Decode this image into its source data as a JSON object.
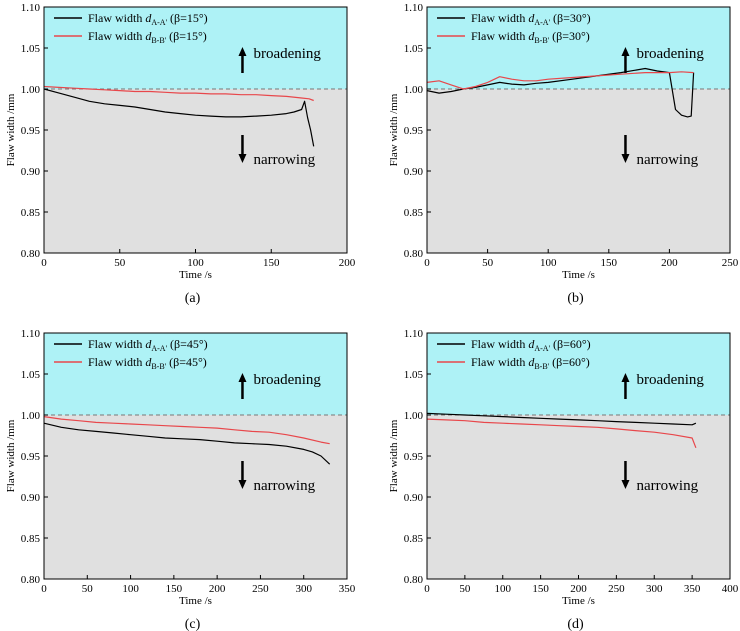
{
  "chart_data": [
    {
      "type": "line",
      "panel_label": "(a)",
      "xlabel": "Time /s",
      "ylabel": "Flaw width /mm",
      "xlim": [
        0,
        200
      ],
      "ylim": [
        0.8,
        1.1
      ],
      "xticks": [
        "0",
        "50",
        "100",
        "150",
        "200"
      ],
      "yticks": [
        "0.80",
        "0.85",
        "0.90",
        "0.95",
        "1.00",
        "1.05",
        "1.10"
      ],
      "reference_line": 1.0,
      "annotations": {
        "up": "broadening",
        "down": "narrowing"
      },
      "series": [
        {
          "name": "Flaw width",
          "sub": "A-A'",
          "angle": "(β=15°)",
          "color": "#000000",
          "x": [
            0,
            10,
            20,
            30,
            40,
            50,
            60,
            70,
            80,
            90,
            100,
            110,
            120,
            130,
            140,
            150,
            160,
            165,
            170,
            172,
            174,
            176,
            178
          ],
          "y": [
            1.0,
            0.995,
            0.99,
            0.985,
            0.982,
            0.98,
            0.978,
            0.975,
            0.972,
            0.97,
            0.968,
            0.967,
            0.966,
            0.966,
            0.967,
            0.968,
            0.97,
            0.972,
            0.975,
            0.985,
            0.965,
            0.95,
            0.93
          ]
        },
        {
          "name": "Flaw width",
          "sub": "B-B'",
          "angle": "(β=15°)",
          "color": "#e8474b",
          "x": [
            0,
            10,
            20,
            30,
            40,
            50,
            60,
            70,
            80,
            90,
            100,
            110,
            120,
            130,
            140,
            150,
            160,
            170,
            175,
            178
          ],
          "y": [
            1.003,
            1.002,
            1.001,
            1.0,
            0.999,
            0.998,
            0.997,
            0.997,
            0.996,
            0.995,
            0.995,
            0.994,
            0.994,
            0.993,
            0.993,
            0.992,
            0.991,
            0.989,
            0.988,
            0.986
          ]
        }
      ]
    },
    {
      "type": "line",
      "panel_label": "(b)",
      "xlabel": "Time /s",
      "ylabel": "Flaw width /mm",
      "xlim": [
        0,
        250
      ],
      "ylim": [
        0.8,
        1.1
      ],
      "xticks": [
        "0",
        "50",
        "100",
        "150",
        "200",
        "250"
      ],
      "yticks": [
        "0.80",
        "0.85",
        "0.90",
        "0.95",
        "1.00",
        "1.05",
        "1.10"
      ],
      "reference_line": 1.0,
      "annotations": {
        "up": "broadening",
        "down": "narrowing"
      },
      "series": [
        {
          "name": "Flaw width",
          "sub": "A-A'",
          "angle": "(β=30°)",
          "color": "#000000",
          "x": [
            0,
            10,
            20,
            30,
            40,
            50,
            60,
            70,
            80,
            90,
            100,
            120,
            140,
            160,
            180,
            190,
            200,
            205,
            210,
            215,
            218,
            220
          ],
          "y": [
            0.998,
            0.995,
            0.997,
            1.0,
            1.002,
            1.005,
            1.008,
            1.006,
            1.005,
            1.007,
            1.008,
            1.012,
            1.016,
            1.02,
            1.025,
            1.022,
            1.02,
            0.975,
            0.968,
            0.966,
            0.967,
            1.02
          ]
        },
        {
          "name": "Flaw width",
          "sub": "B-B'",
          "angle": "(β=30°)",
          "color": "#e8474b",
          "x": [
            0,
            10,
            20,
            30,
            40,
            50,
            60,
            70,
            80,
            90,
            100,
            120,
            140,
            160,
            180,
            200,
            210,
            220
          ],
          "y": [
            1.008,
            1.01,
            1.005,
            1.0,
            1.003,
            1.008,
            1.015,
            1.012,
            1.01,
            1.01,
            1.012,
            1.014,
            1.016,
            1.018,
            1.02,
            1.02,
            1.021,
            1.02
          ]
        }
      ]
    },
    {
      "type": "line",
      "panel_label": "(c)",
      "xlabel": "Time /s",
      "ylabel": "Flaw width /mm",
      "xlim": [
        0,
        350
      ],
      "ylim": [
        0.8,
        1.1
      ],
      "xticks": [
        "0",
        "50",
        "100",
        "150",
        "200",
        "250",
        "300",
        "350"
      ],
      "yticks": [
        "0.80",
        "0.85",
        "0.90",
        "0.95",
        "1.00",
        "1.05",
        "1.10"
      ],
      "reference_line": 1.0,
      "annotations": {
        "up": "broadening",
        "down": "narrowing"
      },
      "series": [
        {
          "name": "Flaw width",
          "sub": "A-A'",
          "angle": "(β=45°)",
          "color": "#000000",
          "x": [
            0,
            20,
            40,
            60,
            80,
            100,
            120,
            140,
            160,
            180,
            200,
            220,
            240,
            260,
            280,
            300,
            310,
            320,
            330
          ],
          "y": [
            0.99,
            0.985,
            0.982,
            0.98,
            0.978,
            0.976,
            0.974,
            0.972,
            0.971,
            0.97,
            0.968,
            0.966,
            0.965,
            0.964,
            0.962,
            0.958,
            0.955,
            0.95,
            0.94
          ]
        },
        {
          "name": "Flaw width",
          "sub": "B-B'",
          "angle": "(β=45°)",
          "color": "#e8474b",
          "x": [
            0,
            20,
            40,
            60,
            80,
            100,
            120,
            140,
            160,
            180,
            200,
            220,
            240,
            260,
            280,
            300,
            320,
            330
          ],
          "y": [
            0.998,
            0.995,
            0.993,
            0.991,
            0.99,
            0.989,
            0.988,
            0.987,
            0.986,
            0.985,
            0.984,
            0.982,
            0.98,
            0.979,
            0.976,
            0.972,
            0.967,
            0.965
          ]
        }
      ]
    },
    {
      "type": "line",
      "panel_label": "(d)",
      "xlabel": "Time /s",
      "ylabel": "Flaw width /mm",
      "xlim": [
        0,
        400
      ],
      "ylim": [
        0.8,
        1.1
      ],
      "xticks": [
        "0",
        "50",
        "100",
        "150",
        "200",
        "250",
        "300",
        "350",
        "400"
      ],
      "yticks": [
        "0.80",
        "0.85",
        "0.90",
        "0.95",
        "1.00",
        "1.05",
        "1.10"
      ],
      "reference_line": 1.0,
      "annotations": {
        "up": "broadening",
        "down": "narrowing"
      },
      "series": [
        {
          "name": "Flaw width",
          "sub": "A-A'",
          "angle": "(β=60°)",
          "color": "#000000",
          "x": [
            0,
            25,
            50,
            75,
            100,
            125,
            150,
            175,
            200,
            225,
            250,
            275,
            300,
            325,
            350,
            355
          ],
          "y": [
            1.002,
            1.001,
            1.0,
            0.999,
            0.998,
            0.997,
            0.996,
            0.995,
            0.994,
            0.993,
            0.992,
            0.991,
            0.99,
            0.989,
            0.988,
            0.99
          ]
        },
        {
          "name": "Flaw width",
          "sub": "B-B'",
          "angle": "(β=60°)",
          "color": "#e8474b",
          "x": [
            0,
            25,
            50,
            75,
            100,
            125,
            150,
            175,
            200,
            225,
            250,
            275,
            300,
            325,
            350,
            355
          ],
          "y": [
            0.995,
            0.994,
            0.993,
            0.991,
            0.99,
            0.989,
            0.988,
            0.987,
            0.986,
            0.985,
            0.983,
            0.981,
            0.979,
            0.976,
            0.972,
            0.96
          ]
        }
      ]
    }
  ]
}
